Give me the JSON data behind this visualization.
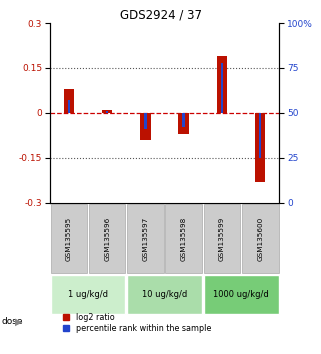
{
  "title": "GDS2924 / 37",
  "samples": [
    "GSM135595",
    "GSM135596",
    "GSM135597",
    "GSM135598",
    "GSM135599",
    "GSM135600"
  ],
  "log2_ratio": [
    0.08,
    0.01,
    -0.09,
    -0.07,
    0.19,
    -0.23
  ],
  "percentile_rank": [
    57,
    51,
    41,
    42,
    78,
    25
  ],
  "red_color": "#bb1100",
  "blue_color": "#2244cc",
  "ylim_left": [
    -0.3,
    0.3
  ],
  "ylim_right": [
    0,
    100
  ],
  "yticks_left": [
    -0.3,
    -0.15,
    0.0,
    0.15,
    0.3
  ],
  "yticks_right": [
    0,
    25,
    50,
    75,
    100
  ],
  "background_color": "#ffffff",
  "sample_box_color": "#cccccc",
  "zero_line_color": "#cc0000",
  "dose_groups": [
    {
      "label": "1 ug/kg/d",
      "start": 0,
      "end": 1,
      "color": "#cceecc"
    },
    {
      "label": "10 ug/kg/d",
      "start": 2,
      "end": 3,
      "color": "#aaddaa"
    },
    {
      "label": "1000 ug/kg/d",
      "start": 4,
      "end": 5,
      "color": "#77cc77"
    }
  ],
  "legend_label_red": "log2 ratio",
  "legend_label_blue": "percentile rank within the sample",
  "red_bar_width": 0.28,
  "blue_bar_width": 0.07
}
